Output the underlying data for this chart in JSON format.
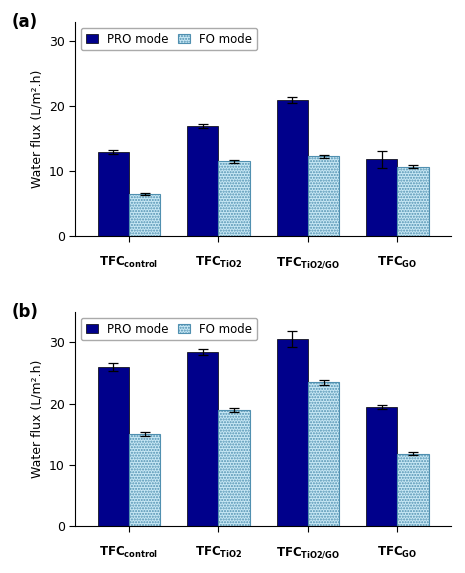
{
  "subplot_a": {
    "label": "(a)",
    "pro_values": [
      13.0,
      17.0,
      21.0,
      11.8
    ],
    "fo_values": [
      6.5,
      11.5,
      12.3,
      10.7
    ],
    "pro_errors": [
      0.3,
      0.3,
      0.5,
      1.3
    ],
    "fo_errors": [
      0.15,
      0.25,
      0.25,
      0.2
    ],
    "ylim": [
      0,
      33
    ],
    "yticks": [
      0,
      10,
      20,
      30
    ],
    "ylabel": "Water flux (L/m².h)"
  },
  "subplot_b": {
    "label": "(b)",
    "pro_values": [
      26.0,
      28.5,
      30.5,
      19.5
    ],
    "fo_values": [
      15.0,
      19.0,
      23.5,
      11.8
    ],
    "pro_errors": [
      0.7,
      0.5,
      1.3,
      0.3
    ],
    "fo_errors": [
      0.3,
      0.35,
      0.4,
      0.25
    ],
    "ylim": [
      0,
      35
    ],
    "yticks": [
      0,
      10,
      20,
      30
    ],
    "ylabel": "Water flux (L/m².h)"
  },
  "pro_color": "#00008B",
  "fo_color_face": "#C8E8F5",
  "fo_color_edge": "#5090B0",
  "bar_width": 0.35,
  "x_subscripts": [
    "control",
    "TiO2",
    "TiO2/GO",
    "GO"
  ],
  "background_color": "#ffffff"
}
